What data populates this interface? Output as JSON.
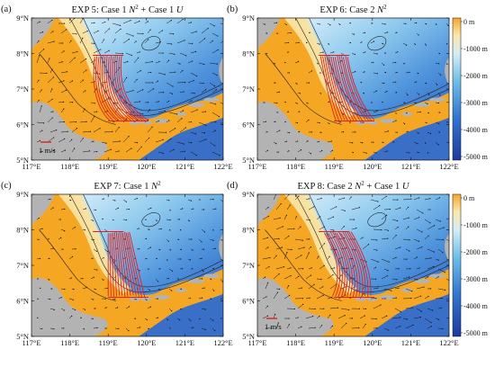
{
  "figure": {
    "panels": [
      {
        "id": "a",
        "label": "(a)",
        "title_prefix": "EXP 5: Case 1 ",
        "title_suffix": " + Case 1 ",
        "title_u": "U",
        "has_scale": true,
        "scale_label": "1 m/s",
        "has_colorbar": false,
        "currents": "strong",
        "tracks": "curved-left"
      },
      {
        "id": "b",
        "label": "(b)",
        "title_prefix": "EXP 6: Case 2 ",
        "title_suffix": "",
        "title_u": "",
        "has_scale": false,
        "scale_label": "",
        "has_colorbar": true,
        "currents": "weak",
        "tracks": "fan"
      },
      {
        "id": "c",
        "label": "(c)",
        "title_prefix": "EXP 7: Case 1 ",
        "title_suffix": "",
        "title_u": "",
        "has_scale": false,
        "scale_label": "",
        "has_colorbar": false,
        "currents": "weak",
        "tracks": "straight"
      },
      {
        "id": "d",
        "label": "(d)",
        "title_prefix": "EXP 8: Case 2 ",
        "title_suffix": " + Case 1 ",
        "title_u": "U",
        "has_scale": true,
        "scale_label": "1 m/s",
        "has_colorbar": true,
        "currents": "strong",
        "tracks": "curved-right"
      }
    ],
    "n2_symbol": "N",
    "n2_sup": "2",
    "lon_ticks": [
      "117°E",
      "118°E",
      "119°E",
      "120°E",
      "121°E",
      "122°E"
    ],
    "lat_ticks": [
      "9°N",
      "8°N",
      "7°N",
      "6°N",
      "5°N"
    ],
    "colorbar": {
      "ticks": [
        "0 m",
        "-1000 m",
        "-2000 m",
        "-3000 m",
        "-4000 m",
        "-5000 m"
      ],
      "range": [
        0,
        -5000
      ],
      "colors": [
        "#f7a52b",
        "#f9e6a8",
        "#cfe7f6",
        "#64b7e3",
        "#2f6fc9",
        "#1e3fa8"
      ]
    },
    "colors": {
      "land": "#b3b3b3",
      "shallow": "#f5a623",
      "shelf": "#f8e3a4",
      "deep": "#3f7fd2",
      "track": "#e02020"
    }
  }
}
